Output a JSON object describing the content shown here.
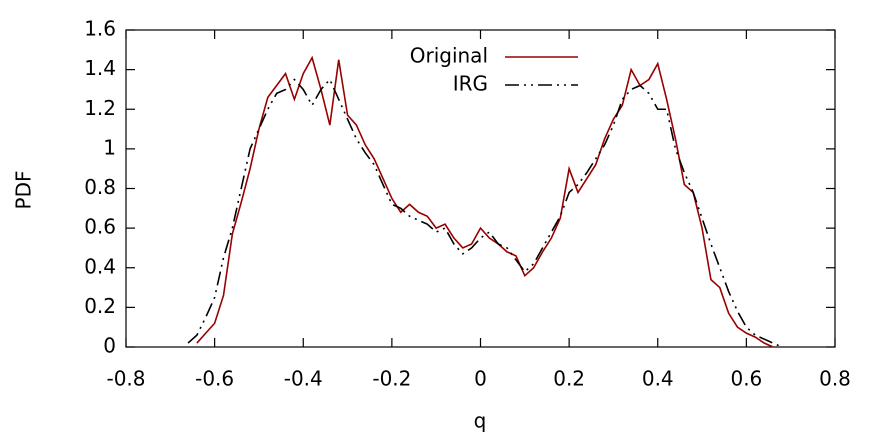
{
  "chart_data": {
    "type": "line",
    "xlabel": "q",
    "ylabel": "PDF",
    "xlim": [
      -0.8,
      0.8
    ],
    "ylim": [
      0,
      1.6
    ],
    "xticks": [
      -0.8,
      -0.6,
      -0.4,
      -0.2,
      0,
      0.2,
      0.4,
      0.6,
      0.8
    ],
    "yticks": [
      0,
      0.2,
      0.4,
      0.6,
      0.8,
      1,
      1.2,
      1.4,
      1.6
    ],
    "grid": false,
    "legend": "top-center",
    "series": [
      {
        "name": "Original",
        "color": "#990000",
        "style": "solid",
        "x": [
          -0.64,
          -0.62,
          -0.6,
          -0.58,
          -0.56,
          -0.54,
          -0.52,
          -0.5,
          -0.48,
          -0.46,
          -0.44,
          -0.42,
          -0.4,
          -0.38,
          -0.36,
          -0.34,
          -0.32,
          -0.3,
          -0.28,
          -0.26,
          -0.24,
          -0.22,
          -0.2,
          -0.18,
          -0.16,
          -0.14,
          -0.12,
          -0.1,
          -0.08,
          -0.06,
          -0.04,
          -0.02,
          0,
          0.02,
          0.04,
          0.06,
          0.08,
          0.1,
          0.12,
          0.14,
          0.16,
          0.18,
          0.2,
          0.22,
          0.24,
          0.26,
          0.28,
          0.3,
          0.32,
          0.34,
          0.36,
          0.38,
          0.4,
          0.42,
          0.44,
          0.46,
          0.48,
          0.5,
          0.52,
          0.54,
          0.56,
          0.58,
          0.6,
          0.62,
          0.64,
          0.66
        ],
        "values": [
          0.02,
          0.07,
          0.12,
          0.26,
          0.57,
          0.73,
          0.9,
          1.1,
          1.26,
          1.32,
          1.38,
          1.25,
          1.38,
          1.46,
          1.3,
          1.12,
          1.45,
          1.17,
          1.12,
          1.02,
          0.95,
          0.85,
          0.75,
          0.68,
          0.72,
          0.68,
          0.66,
          0.6,
          0.62,
          0.55,
          0.5,
          0.52,
          0.6,
          0.55,
          0.52,
          0.48,
          0.46,
          0.36,
          0.4,
          0.48,
          0.55,
          0.65,
          0.9,
          0.78,
          0.85,
          0.92,
          1.05,
          1.15,
          1.22,
          1.4,
          1.32,
          1.35,
          1.43,
          1.25,
          1.05,
          0.82,
          0.78,
          0.6,
          0.34,
          0.3,
          0.17,
          0.1,
          0.07,
          0.05,
          0.02,
          0
        ]
      },
      {
        "name": "IRG",
        "color": "#000000",
        "style": "dash-dot",
        "x": [
          -0.66,
          -0.64,
          -0.62,
          -0.6,
          -0.58,
          -0.56,
          -0.54,
          -0.52,
          -0.5,
          -0.48,
          -0.46,
          -0.44,
          -0.42,
          -0.4,
          -0.38,
          -0.36,
          -0.34,
          -0.32,
          -0.3,
          -0.28,
          -0.26,
          -0.24,
          -0.22,
          -0.2,
          -0.18,
          -0.16,
          -0.14,
          -0.12,
          -0.1,
          -0.08,
          -0.06,
          -0.04,
          -0.02,
          0,
          0.02,
          0.04,
          0.06,
          0.08,
          0.1,
          0.12,
          0.14,
          0.16,
          0.18,
          0.2,
          0.22,
          0.24,
          0.26,
          0.28,
          0.3,
          0.32,
          0.34,
          0.36,
          0.38,
          0.4,
          0.42,
          0.44,
          0.46,
          0.48,
          0.5,
          0.52,
          0.54,
          0.56,
          0.58,
          0.6,
          0.62,
          0.64,
          0.66,
          0.68
        ],
        "values": [
          0.02,
          0.06,
          0.15,
          0.25,
          0.45,
          0.6,
          0.8,
          1,
          1.1,
          1.2,
          1.28,
          1.3,
          1.35,
          1.3,
          1.22,
          1.3,
          1.35,
          1.25,
          1.15,
          1.05,
          0.98,
          0.92,
          0.82,
          0.72,
          0.7,
          0.66,
          0.64,
          0.62,
          0.58,
          0.6,
          0.52,
          0.47,
          0.5,
          0.55,
          0.58,
          0.52,
          0.5,
          0.44,
          0.38,
          0.42,
          0.5,
          0.58,
          0.66,
          0.78,
          0.82,
          0.88,
          0.95,
          1.02,
          1.12,
          1.25,
          1.3,
          1.32,
          1.28,
          1.2,
          1.2,
          1,
          0.88,
          0.78,
          0.65,
          0.52,
          0.4,
          0.28,
          0.18,
          0.1,
          0.06,
          0.04,
          0.02,
          0
        ]
      }
    ]
  }
}
